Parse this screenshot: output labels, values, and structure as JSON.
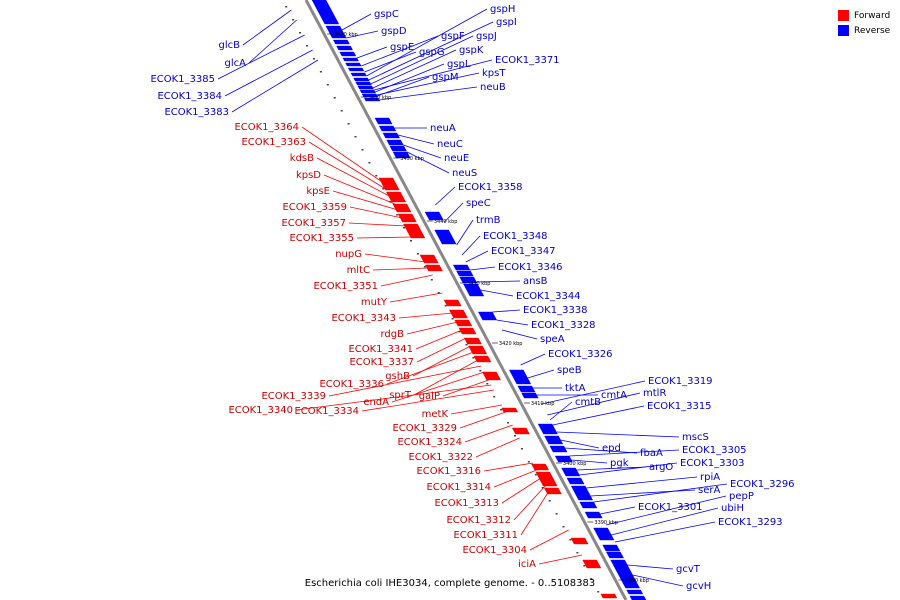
{
  "legend": {
    "forward_label": "Forward",
    "reverse_label": "Reverse",
    "forward_color": "#ff0000",
    "reverse_color": "#0000ff"
  },
  "caption": "Escherichia coli IHE3034, complete genome. - 0..5108383",
  "ticks": [
    "3470 kbp",
    "3460 kbp",
    "3450 kbp",
    "3440 kbp",
    "3430 kbp",
    "3420 kbp",
    "3410 kbp",
    "3400 kbp",
    "3390 kbp",
    "3380 kbp"
  ],
  "labels_forward": [
    "ECOK1_3364",
    "ECOK1_3363",
    "kdsB",
    "kpsD",
    "kpsE",
    "ECOK1_3359",
    "ECOK1_3357",
    "ECOK1_3355",
    "nupG",
    "mltC",
    "ECOK1_3351",
    "mutY",
    "ECOK1_3343",
    "rdgB",
    "ECOK1_3341",
    "ECOK1_3337",
    "gshB",
    "ECOK1_3336",
    "sprT",
    "ECOK1_3339",
    "endA",
    "galP",
    "ECOK1_3340",
    "ECOK1_3334",
    "metK",
    "ECOK1_3329",
    "ECOK1_3324",
    "ECOK1_3322",
    "ECOK1_3316",
    "ECOK1_3314",
    "ECOK1_3313",
    "ECOK1_3312",
    "ECOK1_3311",
    "ECOK1_3304",
    "iciA"
  ],
  "labels_reverse": [
    "glcB",
    "glcA",
    "ECOK1_3385",
    "ECOK1_3384",
    "ECOK1_3383",
    "gspC",
    "gspD",
    "gspE",
    "gspF",
    "gspG",
    "gspH",
    "gspI",
    "gspJ",
    "gspK",
    "gspL",
    "gspM",
    "ECOK1_3371",
    "kpsT",
    "neuB",
    "neuA",
    "neuC",
    "neuE",
    "neuS",
    "ECOK1_3358",
    "speC",
    "trmB",
    "ECOK1_3348",
    "ECOK1_3347",
    "ECOK1_3346",
    "ansB",
    "ECOK1_3344",
    "ECOK1_3338",
    "ECOK1_3328",
    "speA",
    "ECOK1_3326",
    "speB",
    "tktA",
    "cmtA",
    "ECOK1_3319",
    "mtlR",
    "cmtB",
    "ECOK1_3315",
    "mscS",
    "epd",
    "fbaA",
    "ECOK1_3305",
    "pgk",
    "argO",
    "ECOK1_3303",
    "rpiA",
    "serA",
    "ECOK1_3296",
    "ECOK1_3301",
    "pepP",
    "ubiH",
    "ECOK1_3293",
    "gcvT",
    "gcvH"
  ]
}
